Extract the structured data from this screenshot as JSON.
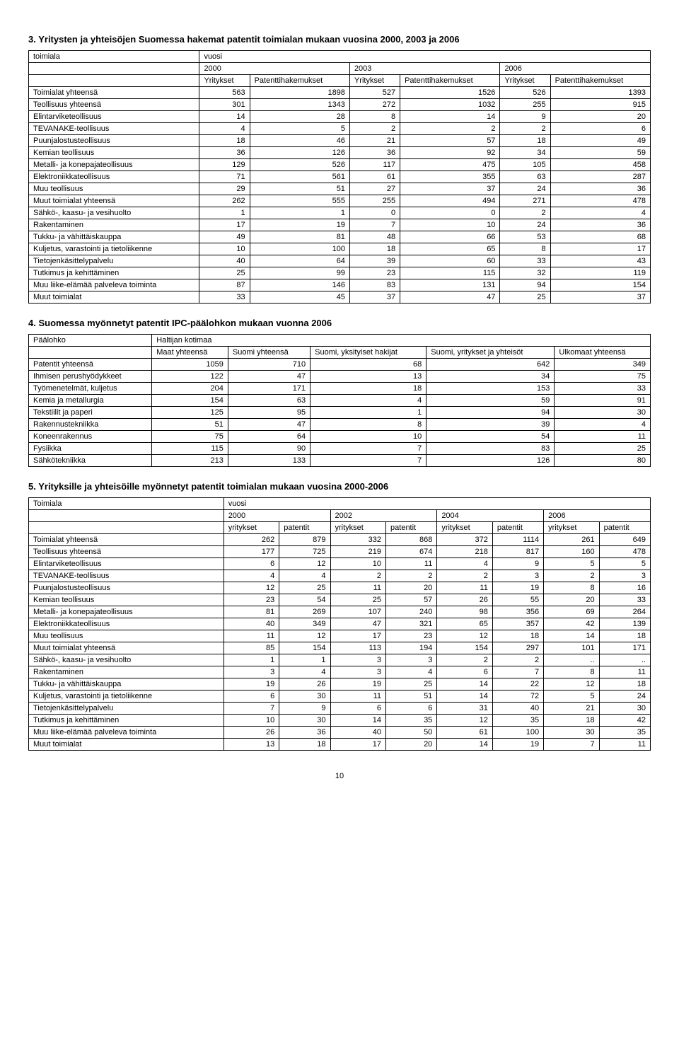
{
  "table3": {
    "title": "3. Yritysten ja yhteisöjen Suomessa hakemat patentit toimialan mukaan vuosina 2000, 2003 ja 2006",
    "h_toimiala": "toimiala",
    "h_vuosi": "vuosi",
    "years": [
      "2000",
      "2003",
      "2006"
    ],
    "subcols": [
      "Yritykset",
      "Patenttihakemukset",
      "Yritykset",
      "Patenttihakemukset",
      "Yritykset",
      "Patenttihakemukset"
    ],
    "rows": [
      [
        "Toimialat yhteensä",
        "563",
        "1898",
        "527",
        "1526",
        "526",
        "1393"
      ],
      [
        "Teollisuus yhteensä",
        "301",
        "1343",
        "272",
        "1032",
        "255",
        "915"
      ],
      [
        "Elintarviketeollisuus",
        "14",
        "28",
        "8",
        "14",
        "9",
        "20"
      ],
      [
        "TEVANAKE-teollisuus",
        "4",
        "5",
        "2",
        "2",
        "2",
        "6"
      ],
      [
        "Puunjalostusteollisuus",
        "18",
        "46",
        "21",
        "57",
        "18",
        "49"
      ],
      [
        "Kemian teollisuus",
        "36",
        "126",
        "36",
        "92",
        "34",
        "59"
      ],
      [
        "Metalli- ja konepajateollisuus",
        "129",
        "526",
        "117",
        "475",
        "105",
        "458"
      ],
      [
        "Elektroniikkateollisuus",
        "71",
        "561",
        "61",
        "355",
        "63",
        "287"
      ],
      [
        "Muu teollisuus",
        "29",
        "51",
        "27",
        "37",
        "24",
        "36"
      ],
      [
        "Muut toimialat yhteensä",
        "262",
        "555",
        "255",
        "494",
        "271",
        "478"
      ],
      [
        "Sähkö-, kaasu- ja vesihuolto",
        "1",
        "1",
        "0",
        "0",
        "2",
        "4"
      ],
      [
        "Rakentaminen",
        "17",
        "19",
        "7",
        "10",
        "24",
        "36"
      ],
      [
        "Tukku- ja vähittäiskauppa",
        "49",
        "81",
        "48",
        "66",
        "53",
        "68"
      ],
      [
        "Kuljetus, varastointi ja tietoliikenne",
        "10",
        "100",
        "18",
        "65",
        "8",
        "17"
      ],
      [
        "Tietojenkäsittelypalvelu",
        "40",
        "64",
        "39",
        "60",
        "33",
        "43"
      ],
      [
        "Tutkimus ja kehittäminen",
        "25",
        "99",
        "23",
        "115",
        "32",
        "119"
      ],
      [
        "Muu liike-elämää palveleva toiminta",
        "87",
        "146",
        "83",
        "131",
        "94",
        "154"
      ],
      [
        "Muut toimialat",
        "33",
        "45",
        "37",
        "47",
        "25",
        "37"
      ]
    ]
  },
  "table4": {
    "title": "4. Suomessa myönnetyt patentit IPC-päälohkon mukaan vuonna 2006",
    "h_paalohko": "Päälohko",
    "h_haltijan": "Haltijan kotimaa",
    "cols": [
      "Maat yhteensä",
      "Suomi yhteensä",
      "Suomi, yksityiset hakijat",
      "Suomi, yritykset ja yhteisöt",
      "Ulkomaat yhteensä"
    ],
    "rows": [
      [
        "Patentit yhteensä",
        "1059",
        "710",
        "68",
        "642",
        "349"
      ],
      [
        "Ihmisen perushyödykkeet",
        "122",
        "47",
        "13",
        "34",
        "75"
      ],
      [
        "Työmenetelmät, kuljetus",
        "204",
        "171",
        "18",
        "153",
        "33"
      ],
      [
        "Kemia ja metallurgia",
        "154",
        "63",
        "4",
        "59",
        "91"
      ],
      [
        "Tekstiilit ja paperi",
        "125",
        "95",
        "1",
        "94",
        "30"
      ],
      [
        "Rakennustekniikka",
        "51",
        "47",
        "8",
        "39",
        "4"
      ],
      [
        "Koneenrakennus",
        "75",
        "64",
        "10",
        "54",
        "11"
      ],
      [
        "Fysiikka",
        "115",
        "90",
        "7",
        "83",
        "25"
      ],
      [
        "Sähkötekniikka",
        "213",
        "133",
        "7",
        "126",
        "80"
      ]
    ]
  },
  "table5": {
    "title": "5. Yrityksille ja yhteisöille myönnetyt patentit toimialan mukaan vuosina 2000-2006",
    "h_toimiala": "Toimiala",
    "h_vuosi": "vuosi",
    "years": [
      "2000",
      "2002",
      "2004",
      "2006"
    ],
    "subcols": [
      "yritykset",
      "patentit",
      "yritykset",
      "patentit",
      "yritykset",
      "patentit",
      "yritykset",
      "patentit"
    ],
    "rows": [
      [
        "Toimialat yhteensä",
        "262",
        "879",
        "332",
        "868",
        "372",
        "1114",
        "261",
        "649"
      ],
      [
        "Teollisuus yhteensä",
        "177",
        "725",
        "219",
        "674",
        "218",
        "817",
        "160",
        "478"
      ],
      [
        "Elintarviketeollisuus",
        "6",
        "12",
        "10",
        "11",
        "4",
        "9",
        "5",
        "5"
      ],
      [
        "TEVANAKE-teollisuus",
        "4",
        "4",
        "2",
        "2",
        "2",
        "3",
        "2",
        "3"
      ],
      [
        "Puunjalostusteollisuus",
        "12",
        "25",
        "11",
        "20",
        "11",
        "19",
        "8",
        "16"
      ],
      [
        "Kemian teollisuus",
        "23",
        "54",
        "25",
        "57",
        "26",
        "55",
        "20",
        "33"
      ],
      [
        "Metalli- ja konepajateollisuus",
        "81",
        "269",
        "107",
        "240",
        "98",
        "356",
        "69",
        "264"
      ],
      [
        "Elektroniikkateollisuus",
        "40",
        "349",
        "47",
        "321",
        "65",
        "357",
        "42",
        "139"
      ],
      [
        "Muu teollisuus",
        "11",
        "12",
        "17",
        "23",
        "12",
        "18",
        "14",
        "18"
      ],
      [
        "Muut toimialat yhteensä",
        "85",
        "154",
        "113",
        "194",
        "154",
        "297",
        "101",
        "171"
      ],
      [
        "Sähkö-, kaasu- ja vesihuolto",
        "1",
        "1",
        "3",
        "3",
        "2",
        "2",
        "..",
        ".."
      ],
      [
        "Rakentaminen",
        "3",
        "4",
        "3",
        "4",
        "6",
        "7",
        "8",
        "11"
      ],
      [
        "Tukku- ja vähittäiskauppa",
        "19",
        "26",
        "19",
        "25",
        "14",
        "22",
        "12",
        "18"
      ],
      [
        "Kuljetus, varastointi ja tietoliikenne",
        "6",
        "30",
        "11",
        "51",
        "14",
        "72",
        "5",
        "24"
      ],
      [
        "Tietojenkäsittelypalvelu",
        "7",
        "9",
        "6",
        "6",
        "31",
        "40",
        "21",
        "30"
      ],
      [
        "Tutkimus ja kehittäminen",
        "10",
        "30",
        "14",
        "35",
        "12",
        "35",
        "18",
        "42"
      ],
      [
        "Muu liike-elämää palveleva toiminta",
        "26",
        "36",
        "40",
        "50",
        "61",
        "100",
        "30",
        "35"
      ],
      [
        "Muut toimialat",
        "13",
        "18",
        "17",
        "20",
        "14",
        "19",
        "7",
        "11"
      ]
    ]
  },
  "page_number": "10"
}
